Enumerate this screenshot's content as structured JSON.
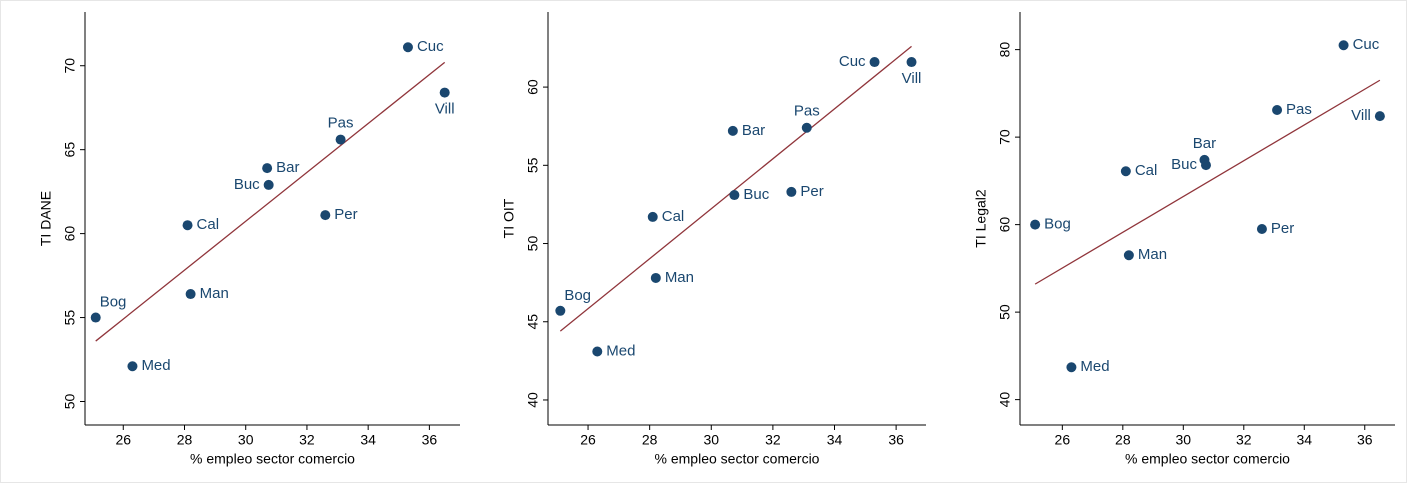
{
  "chart_data": [
    {
      "type": "scatter",
      "xlabel": "% empleo sector comercio",
      "ylabel": "TI DANE",
      "labels": [
        "Bog",
        "Med",
        "Cal",
        "Man",
        "Bar",
        "Buc",
        "Per",
        "Pas",
        "Cuc",
        "Vill"
      ],
      "x": [
        25.1,
        26.3,
        28.1,
        28.2,
        30.7,
        30.75,
        32.6,
        33.1,
        35.3,
        36.5
      ],
      "values": [
        55.0,
        52.1,
        60.5,
        56.4,
        63.9,
        62.9,
        61.1,
        65.6,
        71.1,
        68.4
      ],
      "color": "#1a476f",
      "fit": {
        "x": [
          25.1,
          36.5
        ],
        "values": [
          53.6,
          70.2
        ],
        "color": "#90353b"
      },
      "xlim": [
        24.75,
        37
      ],
      "ylim": [
        48.6,
        73.2
      ],
      "xticks": [
        26,
        28,
        30,
        32,
        34,
        36
      ],
      "yticks": [
        50,
        55,
        60,
        65,
        70
      ]
    },
    {
      "type": "scatter",
      "xlabel": "% empleo sector comercio",
      "ylabel": "TI OIT",
      "labels": [
        "Bog",
        "Med",
        "Cal",
        "Man",
        "Bar",
        "Buc",
        "Per",
        "Pas",
        "Cuc",
        "Vill"
      ],
      "x": [
        25.1,
        26.3,
        28.1,
        28.2,
        30.7,
        30.75,
        32.6,
        33.1,
        35.3,
        36.5
      ],
      "values": [
        45.7,
        43.1,
        51.7,
        47.8,
        57.2,
        53.1,
        53.3,
        57.4,
        61.6,
        61.6
      ],
      "color": "#1a476f",
      "fit": {
        "x": [
          25.1,
          36.5
        ],
        "values": [
          44.4,
          62.6
        ],
        "color": "#90353b"
      },
      "xlim": [
        24.7,
        36.97
      ],
      "ylim": [
        38.4,
        64.8
      ],
      "xticks": [
        26,
        28,
        30,
        32,
        34,
        36
      ],
      "yticks": [
        40,
        45,
        50,
        55,
        60
      ]
    },
    {
      "type": "scatter",
      "xlabel": "% empleo sector comercio",
      "ylabel": "TI Legal2",
      "labels": [
        "Bog",
        "Med",
        "Cal",
        "Man",
        "Bar",
        "Buc",
        "Per",
        "Pas",
        "Cuc",
        "Vill"
      ],
      "x": [
        25.1,
        26.3,
        28.1,
        28.2,
        30.7,
        30.75,
        32.6,
        33.1,
        35.3,
        36.5
      ],
      "values": [
        60.0,
        43.7,
        66.1,
        56.5,
        67.4,
        66.8,
        59.5,
        73.1,
        80.5,
        72.4
      ],
      "color": "#1a476f",
      "fit": {
        "x": [
          25.1,
          36.5
        ],
        "values": [
          53.2,
          76.5
        ],
        "color": "#90353b"
      },
      "xlim": [
        24.6,
        37.0
      ],
      "ylim": [
        37.1,
        84.3
      ],
      "xticks": [
        26,
        28,
        30,
        32,
        34,
        36
      ],
      "yticks": [
        40,
        50,
        60,
        70,
        80
      ]
    }
  ]
}
